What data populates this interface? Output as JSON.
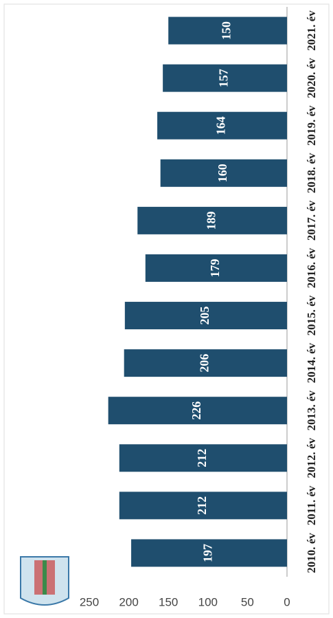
{
  "chart_data": {
    "type": "bar",
    "categories": [
      "2010. év",
      "2011. év",
      "2012. év",
      "2013. év",
      "2014. év",
      "2015. év",
      "2016. év",
      "2017. év",
      "2018. év",
      "2019. év",
      "2020. év",
      "2021. év"
    ],
    "values": [
      197,
      212,
      212,
      226,
      206,
      205,
      179,
      189,
      160,
      164,
      157,
      150
    ],
    "color": "#1f4e6e",
    "ylim": [
      0,
      250
    ],
    "yticks": [
      0,
      50,
      100,
      150,
      200,
      250
    ],
    "grid": false
  }
}
